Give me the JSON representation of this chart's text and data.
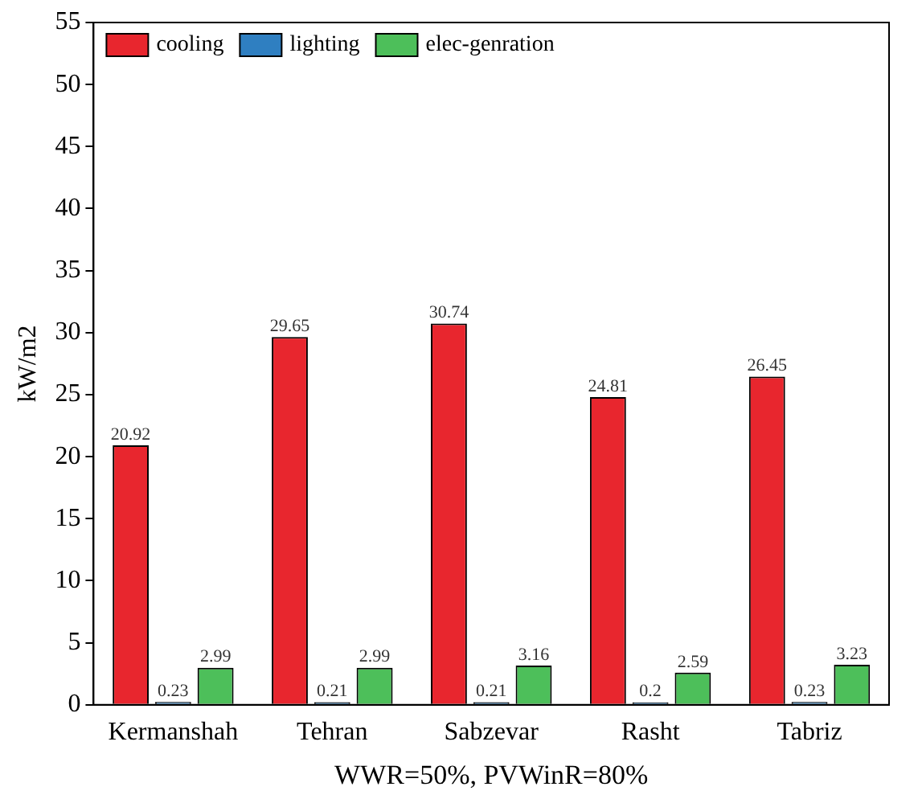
{
  "chart_data": {
    "type": "bar",
    "xlabel": "WWR=50%, PVWinR=80%",
    "ylabel": "kW/m2",
    "categories": [
      "Kermanshah",
      "Tehran",
      "Sabzevar",
      "Rasht",
      "Tabriz"
    ],
    "series": [
      {
        "name": "cooling",
        "color": "#e8262e",
        "values": [
          20.92,
          29.65,
          30.74,
          24.81,
          26.45
        ]
      },
      {
        "name": "lighting",
        "color": "#2f7fc1",
        "values": [
          0.23,
          0.21,
          0.21,
          0.2,
          0.23
        ]
      },
      {
        "name": "elec-genration",
        "color": "#4dbf5a",
        "values": [
          2.99,
          2.99,
          3.16,
          2.59,
          3.23
        ]
      }
    ],
    "ylim": [
      0,
      55
    ],
    "yticks": [
      0,
      5,
      10,
      15,
      20,
      25,
      30,
      35,
      40,
      45,
      50,
      55
    ],
    "data_labels": true,
    "legend": "top left",
    "grid": false
  }
}
